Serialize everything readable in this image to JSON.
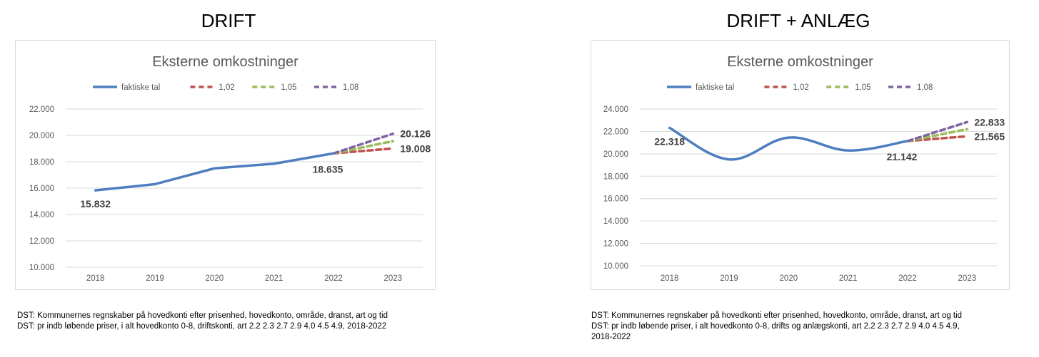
{
  "panels": [
    {
      "heading": "DRIFT",
      "source_lines": [
        "DST: Kommunernes regnskaber på hovedkonti efter prisenhed, hovedkonto, område, dranst, art og tid",
        "DST: pr indb løbende priser, i alt hovedkonto 0-8, driftskonti, art 2.2 2.3 2.7 2.9 4.0 4.5 4.9, 2018-2022"
      ]
    },
    {
      "heading": "DRIFT + ANLÆG",
      "source_lines": [
        "DST: Kommunernes regnskaber på hovedkonti efter prisenhed, hovedkonto, område, dranst, art og tid",
        "DST: pr indb løbende priser, i alt hovedkonto 0-8, drifts og anlægskonti, art 2.2 2.3 2.7 2.9 4.0 4.5 4.9,",
        "2018-2022"
      ]
    }
  ],
  "colors": {
    "faktiske": "#4f7ec0",
    "f102": "#c0504d",
    "f105": "#9bbb59",
    "f108": "#8064a2",
    "grid": "#d9d9d9",
    "axis_text": "#595959",
    "label_text": "#404040"
  },
  "chart_data": [
    {
      "type": "line",
      "title": "Eksterne omkostninger",
      "categories": [
        "2018",
        "2019",
        "2020",
        "2021",
        "2022",
        "2023"
      ],
      "ylim": [
        10000,
        22000
      ],
      "yticks": [
        10000,
        12000,
        14000,
        16000,
        18000,
        20000,
        22000
      ],
      "ytick_labels": [
        "10.000",
        "12.000",
        "14.000",
        "16.000",
        "18.000",
        "20.000",
        "22.000"
      ],
      "grid": true,
      "legend_position": "top",
      "smooth": false,
      "series": [
        {
          "name": "faktiske tal",
          "key": "faktiske",
          "style": "solid",
          "x": [
            "2018",
            "2019",
            "2020",
            "2021",
            "2022"
          ],
          "values": [
            15832,
            16300,
            17500,
            17850,
            18635
          ]
        },
        {
          "name": "1,02",
          "key": "f102",
          "style": "dashed",
          "x": [
            "2022",
            "2023"
          ],
          "values": [
            18635,
            19008
          ]
        },
        {
          "name": "1,05",
          "key": "f105",
          "style": "dashed",
          "x": [
            "2022",
            "2023"
          ],
          "values": [
            18635,
            19567
          ]
        },
        {
          "name": "1,08",
          "key": "f108",
          "style": "dashed",
          "x": [
            "2022",
            "2023"
          ],
          "values": [
            18635,
            20126
          ]
        }
      ],
      "data_labels": [
        {
          "x": "2018",
          "value": 15832,
          "text": "15.832",
          "placement": "below"
        },
        {
          "x": "2022",
          "value": 18635,
          "text": "18.635",
          "placement": "below-left"
        },
        {
          "x": "2023",
          "value": 20126,
          "text": "20.126",
          "placement": "right"
        },
        {
          "x": "2023",
          "value": 19008,
          "text": "19.008",
          "placement": "right"
        }
      ]
    },
    {
      "type": "line",
      "title": "Eksterne omkostninger",
      "categories": [
        "2018",
        "2019",
        "2020",
        "2021",
        "2022",
        "2023"
      ],
      "ylim": [
        10000,
        24000
      ],
      "yticks": [
        10000,
        12000,
        14000,
        16000,
        18000,
        20000,
        22000,
        24000
      ],
      "ytick_labels": [
        "10.000",
        "12.000",
        "14.000",
        "16.000",
        "18.000",
        "20.000",
        "22.000",
        "24.000"
      ],
      "grid": true,
      "legend_position": "top",
      "smooth": true,
      "series": [
        {
          "name": "faktiske tal",
          "key": "faktiske",
          "style": "solid",
          "x": [
            "2018",
            "2019",
            "2020",
            "2021",
            "2022"
          ],
          "values": [
            22318,
            19500,
            21450,
            20300,
            21142
          ]
        },
        {
          "name": "1,02",
          "key": "f102",
          "style": "dashed",
          "x": [
            "2022",
            "2023"
          ],
          "values": [
            21142,
            21565
          ]
        },
        {
          "name": "1,05",
          "key": "f105",
          "style": "dashed",
          "x": [
            "2022",
            "2023"
          ],
          "values": [
            21142,
            22199
          ]
        },
        {
          "name": "1,08",
          "key": "f108",
          "style": "dashed",
          "x": [
            "2022",
            "2023"
          ],
          "values": [
            21142,
            22833
          ]
        }
      ],
      "data_labels": [
        {
          "x": "2018",
          "value": 22318,
          "text": "22.318",
          "placement": "below"
        },
        {
          "x": "2022",
          "value": 21142,
          "text": "21.142",
          "placement": "below-left"
        },
        {
          "x": "2023",
          "value": 22833,
          "text": "22.833",
          "placement": "right"
        },
        {
          "x": "2023",
          "value": 21565,
          "text": "21.565",
          "placement": "right"
        }
      ]
    }
  ]
}
